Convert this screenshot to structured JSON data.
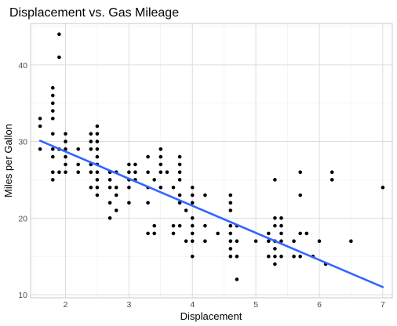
{
  "chart_data": {
    "type": "scatter",
    "title": "Displacement vs. Gas Mileage",
    "xlabel": "Displacement",
    "ylabel": "Miles per Gallon",
    "xlim": [
      1.45,
      7.15
    ],
    "ylim": [
      9.6,
      45.4
    ],
    "xticks": [
      2,
      3,
      4,
      5,
      6,
      7
    ],
    "yticks": [
      10,
      20,
      30,
      40
    ],
    "grid": true,
    "legend": "none",
    "point_color": "#000000",
    "trendline": {
      "method": "linear",
      "color": "#3366ff",
      "x": [
        1.6,
        7.0
      ],
      "y": [
        30.1,
        11.0
      ]
    },
    "points": [
      [
        1.6,
        33
      ],
      [
        1.6,
        32
      ],
      [
        1.6,
        29
      ],
      [
        1.8,
        37
      ],
      [
        1.8,
        36
      ],
      [
        1.8,
        35
      ],
      [
        1.8,
        34
      ],
      [
        1.8,
        33
      ],
      [
        1.8,
        31
      ],
      [
        1.8,
        29
      ],
      [
        1.8,
        28
      ],
      [
        1.8,
        26
      ],
      [
        1.8,
        25
      ],
      [
        1.9,
        44
      ],
      [
        1.9,
        41
      ],
      [
        1.9,
        29
      ],
      [
        1.9,
        26
      ],
      [
        2.0,
        31
      ],
      [
        2.0,
        30
      ],
      [
        2.0,
        29
      ],
      [
        2.0,
        28
      ],
      [
        2.0,
        27
      ],
      [
        2.0,
        26
      ],
      [
        2.2,
        29
      ],
      [
        2.2,
        26
      ],
      [
        2.2,
        27
      ],
      [
        2.4,
        31
      ],
      [
        2.4,
        30
      ],
      [
        2.4,
        29
      ],
      [
        2.4,
        27
      ],
      [
        2.4,
        26
      ],
      [
        2.4,
        24
      ],
      [
        2.5,
        32
      ],
      [
        2.5,
        31
      ],
      [
        2.5,
        30
      ],
      [
        2.5,
        29
      ],
      [
        2.5,
        28
      ],
      [
        2.5,
        27
      ],
      [
        2.5,
        26
      ],
      [
        2.5,
        25
      ],
      [
        2.5,
        24
      ],
      [
        2.5,
        23
      ],
      [
        2.7,
        26
      ],
      [
        2.7,
        25
      ],
      [
        2.7,
        24
      ],
      [
        2.7,
        22
      ],
      [
        2.7,
        20
      ],
      [
        2.8,
        26
      ],
      [
        2.8,
        24
      ],
      [
        2.8,
        23
      ],
      [
        2.8,
        21
      ],
      [
        3.0,
        27
      ],
      [
        3.0,
        26
      ],
      [
        3.0,
        25
      ],
      [
        3.0,
        24
      ],
      [
        3.0,
        22
      ],
      [
        3.1,
        27
      ],
      [
        3.1,
        26
      ],
      [
        3.1,
        25
      ],
      [
        3.3,
        28
      ],
      [
        3.3,
        26
      ],
      [
        3.3,
        24
      ],
      [
        3.3,
        22
      ],
      [
        3.3,
        18
      ],
      [
        3.4,
        25
      ],
      [
        3.4,
        19
      ],
      [
        3.4,
        18
      ],
      [
        3.5,
        29
      ],
      [
        3.5,
        28
      ],
      [
        3.5,
        27
      ],
      [
        3.5,
        26
      ],
      [
        3.5,
        24
      ],
      [
        3.6,
        26
      ],
      [
        3.7,
        24
      ],
      [
        3.7,
        19
      ],
      [
        3.7,
        18
      ],
      [
        3.8,
        28
      ],
      [
        3.8,
        27
      ],
      [
        3.8,
        26
      ],
      [
        3.8,
        25
      ],
      [
        3.8,
        23
      ],
      [
        3.8,
        22
      ],
      [
        3.8,
        19
      ],
      [
        3.9,
        21
      ],
      [
        3.9,
        17
      ],
      [
        4.0,
        24
      ],
      [
        4.0,
        23
      ],
      [
        4.0,
        22
      ],
      [
        4.0,
        20
      ],
      [
        4.0,
        19
      ],
      [
        4.0,
        18
      ],
      [
        4.0,
        17
      ],
      [
        4.0,
        15
      ],
      [
        4.2,
        23
      ],
      [
        4.2,
        19
      ],
      [
        4.2,
        17
      ],
      [
        4.4,
        18
      ],
      [
        4.6,
        23
      ],
      [
        4.6,
        22
      ],
      [
        4.6,
        21
      ],
      [
        4.6,
        19
      ],
      [
        4.6,
        18
      ],
      [
        4.6,
        17
      ],
      [
        4.6,
        16
      ],
      [
        4.6,
        15
      ],
      [
        4.7,
        19
      ],
      [
        4.7,
        17
      ],
      [
        4.7,
        15
      ],
      [
        4.7,
        12
      ],
      [
        5.0,
        17
      ],
      [
        5.2,
        18
      ],
      [
        5.2,
        17
      ],
      [
        5.2,
        15
      ],
      [
        5.3,
        25
      ],
      [
        5.3,
        20
      ],
      [
        5.3,
        19
      ],
      [
        5.3,
        17
      ],
      [
        5.3,
        16
      ],
      [
        5.3,
        15
      ],
      [
        5.3,
        14
      ],
      [
        5.4,
        20
      ],
      [
        5.4,
        19
      ],
      [
        5.4,
        18
      ],
      [
        5.4,
        17
      ],
      [
        5.4,
        15
      ],
      [
        5.6,
        17
      ],
      [
        5.6,
        15
      ],
      [
        5.7,
        26
      ],
      [
        5.7,
        23
      ],
      [
        5.7,
        18
      ],
      [
        5.7,
        15
      ],
      [
        5.8,
        18
      ],
      [
        5.9,
        15
      ],
      [
        6.0,
        17
      ],
      [
        6.1,
        14
      ],
      [
        6.2,
        26
      ],
      [
        6.2,
        25
      ],
      [
        6.5,
        17
      ],
      [
        7.0,
        24
      ]
    ]
  }
}
